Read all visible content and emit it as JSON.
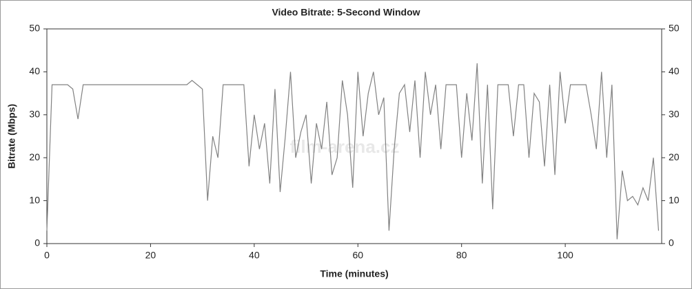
{
  "chart_data": {
    "type": "line",
    "title": "Video Bitrate: 5-Second Window",
    "xlabel": "Time (minutes)",
    "ylabel": "Bitrate (Mbps)",
    "watermark": "film-arena.cz",
    "x": [
      0,
      1,
      2,
      3,
      4,
      5,
      6,
      7,
      8,
      9,
      10,
      11,
      12,
      13,
      14,
      15,
      16,
      17,
      18,
      19,
      20,
      21,
      22,
      23,
      24,
      25,
      26,
      27,
      28,
      29,
      30,
      31,
      32,
      33,
      34,
      35,
      36,
      37,
      38,
      39,
      40,
      41,
      42,
      43,
      44,
      45,
      46,
      47,
      48,
      49,
      50,
      51,
      52,
      53,
      54,
      55,
      56,
      57,
      58,
      59,
      60,
      61,
      62,
      63,
      64,
      65,
      66,
      67,
      68,
      69,
      70,
      71,
      72,
      73,
      74,
      75,
      76,
      77,
      78,
      79,
      80,
      81,
      82,
      83,
      84,
      85,
      86,
      87,
      88,
      89,
      90,
      91,
      92,
      93,
      94,
      95,
      96,
      97,
      98,
      99,
      100,
      101,
      102,
      103,
      104,
      105,
      106,
      107,
      108,
      109,
      110,
      111,
      112,
      113,
      114,
      115,
      116,
      117,
      118
    ],
    "series": [
      {
        "name": "Bitrate",
        "color": "#808080",
        "values": [
          3,
          37,
          37,
          37,
          37,
          36,
          29,
          37,
          37,
          37,
          37,
          37,
          37,
          37,
          37,
          37,
          37,
          37,
          37,
          37,
          37,
          37,
          37,
          37,
          37,
          37,
          37,
          37,
          38,
          37,
          36,
          10,
          25,
          20,
          37,
          37,
          37,
          37,
          37,
          18,
          30,
          22,
          28,
          14,
          36,
          12,
          25,
          40,
          20,
          26,
          30,
          14,
          28,
          22,
          33,
          16,
          20,
          38,
          30,
          13,
          40,
          25,
          35,
          40,
          30,
          34,
          3,
          22,
          35,
          37,
          26,
          38,
          20,
          40,
          30,
          37,
          22,
          37,
          37,
          37,
          20,
          35,
          24,
          42,
          14,
          37,
          8,
          37,
          37,
          37,
          25,
          37,
          37,
          20,
          35,
          33,
          18,
          37,
          16,
          40,
          28,
          37,
          37,
          37,
          37,
          30,
          22,
          40,
          20,
          37,
          1,
          17,
          10,
          11,
          9,
          13,
          10,
          20,
          3
        ]
      }
    ],
    "xlim": [
      0,
      118.6
    ],
    "xticks": [
      0,
      20,
      40,
      60,
      80,
      100
    ],
    "ylim": [
      0,
      50
    ],
    "yticks": [
      0,
      10,
      20,
      30,
      40,
      50
    ],
    "y2lim": [
      0,
      50
    ],
    "y2ticks": [
      0,
      10,
      20,
      30,
      40,
      50
    ],
    "grid": false
  }
}
